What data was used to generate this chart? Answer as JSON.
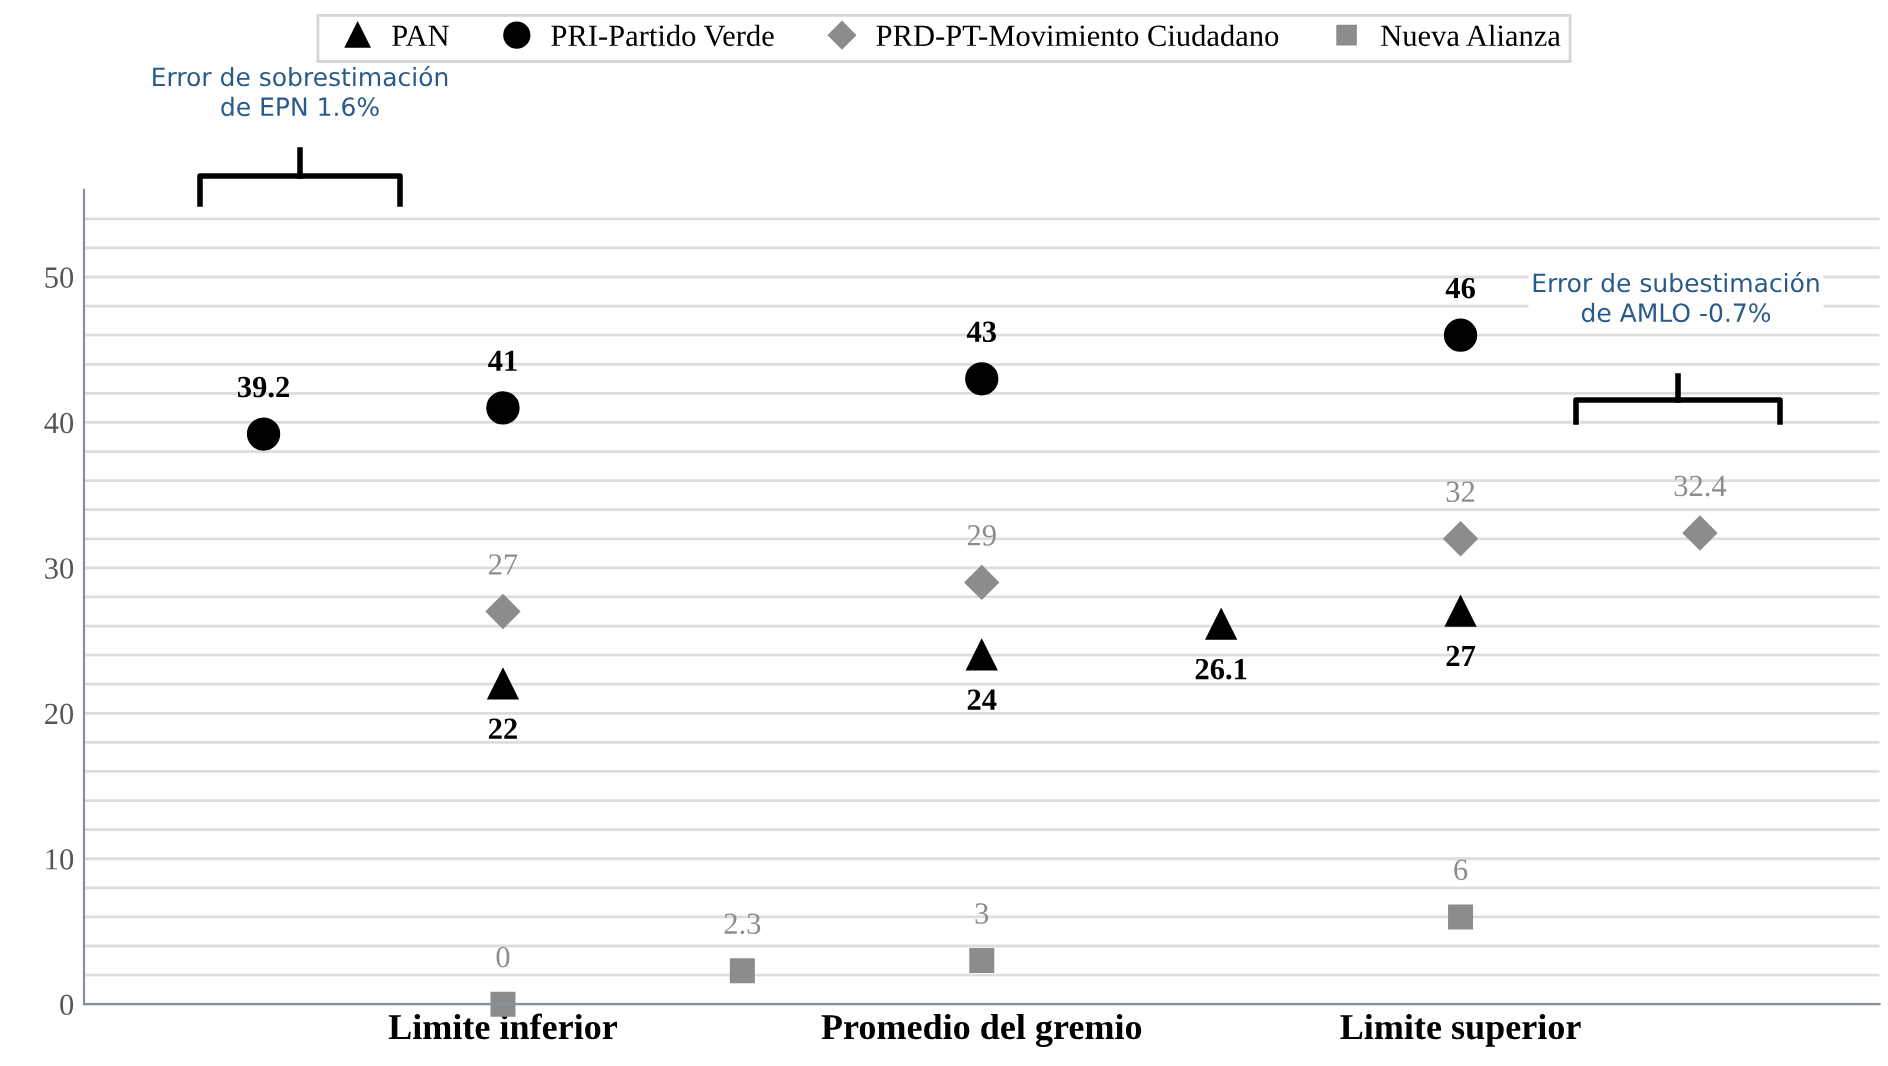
{
  "chart_data": {
    "type": "scatter",
    "categories": [
      null,
      "Limite inferior",
      null,
      "Promedio del gremio",
      null,
      "Limite superior",
      null
    ],
    "ylim": [
      0,
      56
    ],
    "yticks": [
      0,
      {
        "value": 2,
        "label": null
      },
      {
        "value": 4,
        "label": null
      },
      {
        "value": 6,
        "label": null
      },
      {
        "value": 8,
        "label": null
      },
      10,
      {
        "value": 12,
        "label": null
      },
      {
        "value": 14,
        "label": null
      },
      {
        "value": 16,
        "label": null
      },
      {
        "value": 18,
        "label": null
      },
      20,
      {
        "value": 22,
        "label": null
      },
      {
        "value": 24,
        "label": null
      },
      {
        "value": 26,
        "label": null
      },
      {
        "value": 28,
        "label": null
      },
      30,
      {
        "value": 32,
        "label": null
      },
      {
        "value": 34,
        "label": null
      },
      {
        "value": 36,
        "label": null
      },
      {
        "value": 38,
        "label": null
      },
      40,
      {
        "value": 42,
        "label": null
      },
      {
        "value": 44,
        "label": null
      },
      {
        "value": 46,
        "label": null
      },
      {
        "value": 48,
        "label": null
      },
      50,
      {
        "value": 52,
        "label": null
      },
      {
        "value": 54,
        "label": null
      }
    ],
    "grid": "y",
    "legend": "top",
    "data_labels": true,
    "series": [
      {
        "name": "PAN",
        "color": "#000000",
        "marker": "triangle",
        "values": [
          null,
          22,
          null,
          24,
          26.1,
          27,
          null
        ]
      },
      {
        "name": "PRI-Partido Verde",
        "color": "#000000",
        "marker": "circle",
        "values": [
          39.2,
          41,
          null,
          43,
          null,
          46,
          null
        ]
      },
      {
        "name": "PRD-PT-Movimiento Ciudadano",
        "color": "#8c8c8c",
        "marker": "diamond",
        "values": [
          null,
          27,
          null,
          29,
          null,
          32,
          32.4
        ]
      },
      {
        "name": "Nueva Alianza",
        "color": "#8c8c8c",
        "marker": "square",
        "values": [
          null,
          0,
          2.3,
          3,
          null,
          6,
          null
        ]
      }
    ],
    "annotations": [
      "Error de sobrestimación\nde EPN 1.6%",
      "Error de subestimación\nde AMLO -0.7%"
    ]
  }
}
